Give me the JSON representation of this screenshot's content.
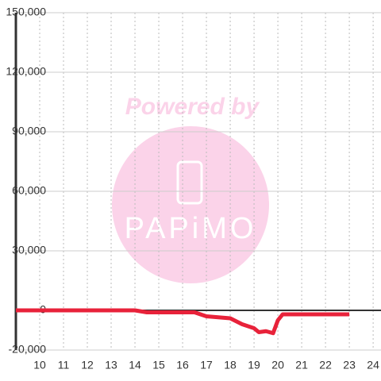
{
  "chart_data": {
    "type": "line",
    "watermark": {
      "line1": "Powered by",
      "line2": "PAPiMO"
    },
    "x": [
      9,
      10,
      11,
      12,
      13,
      14,
      14.5,
      15,
      16,
      16.5,
      17,
      17.5,
      18,
      18.5,
      19,
      19.2,
      19.5,
      19.8,
      20,
      20.2,
      21,
      22,
      23
    ],
    "series": [
      {
        "color": "#e8223a",
        "values": [
          0,
          0,
          0,
          0,
          0,
          0,
          -1000,
          -1000,
          -1000,
          -1000,
          -3000,
          -3500,
          -4000,
          -7000,
          -9000,
          -11000,
          -10500,
          -11500,
          -5000,
          -2000,
          -2000,
          -2000,
          -2000
        ]
      }
    ],
    "xlim": [
      9,
      24.33
    ],
    "xticks": [
      10,
      11,
      12,
      13,
      14,
      15,
      16,
      17,
      18,
      19,
      20,
      21,
      22,
      23,
      24
    ],
    "ylim": [
      -20000,
      150000
    ],
    "yticks": [
      {
        "value": -20000,
        "label": "-20,000"
      },
      0,
      {
        "value": 30000,
        "label": "30,000"
      },
      {
        "value": 60000,
        "label": "60,000"
      },
      {
        "value": 90000,
        "label": "90,000"
      },
      {
        "value": 120000,
        "label": "120,000"
      },
      {
        "value": 150000,
        "label": "150,000"
      }
    ],
    "grid": true
  }
}
